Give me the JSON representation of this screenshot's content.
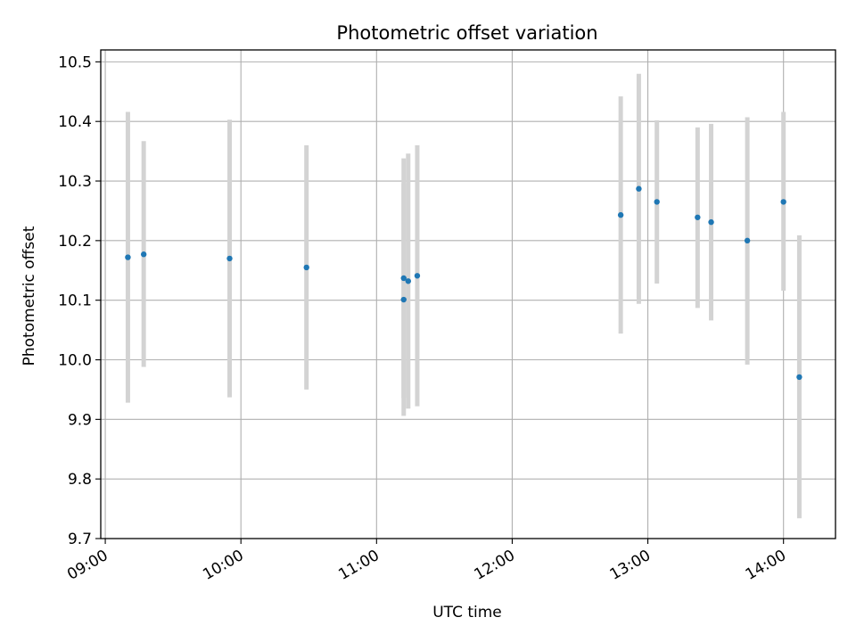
{
  "chart_data": {
    "type": "scatter",
    "title": "Photometric offset variation",
    "xlabel": "UTC time",
    "ylabel": "Photometric offset",
    "x_tick_labels": [
      "09:00",
      "10:00",
      "11:00",
      "12:00",
      "13:00",
      "14:00"
    ],
    "x_tick_values": [
      "09:00",
      "10:00",
      "11:00",
      "12:00",
      "13:00",
      "14:00"
    ],
    "xlim": [
      "08:58",
      "14:23"
    ],
    "ylim": [
      9.7,
      10.52
    ],
    "y_ticks": [
      9.7,
      9.8,
      9.9,
      10.0,
      10.1,
      10.2,
      10.3,
      10.4,
      10.5
    ],
    "y_tick_labels": [
      "9.7",
      "9.8",
      "9.9",
      "10.0",
      "10.1",
      "10.2",
      "10.3",
      "10.4",
      "10.5"
    ],
    "grid": true,
    "point_color": "#1f77b4",
    "errorbar_color": "#d3d3d3",
    "points": [
      {
        "x": "09:10",
        "y": 10.172,
        "ylow": 9.928,
        "yhigh": 10.416
      },
      {
        "x": "09:17",
        "y": 10.177,
        "ylow": 9.988,
        "yhigh": 10.367
      },
      {
        "x": "09:55",
        "y": 10.17,
        "ylow": 9.937,
        "yhigh": 10.403
      },
      {
        "x": "10:29",
        "y": 10.155,
        "ylow": 9.95,
        "yhigh": 10.36
      },
      {
        "x": "11:12",
        "y": 10.137,
        "ylow": 9.936,
        "yhigh": 10.338
      },
      {
        "x": "11:12",
        "y": 10.101,
        "ylow": 9.906,
        "yhigh": 10.296
      },
      {
        "x": "11:14",
        "y": 10.132,
        "ylow": 9.918,
        "yhigh": 10.346
      },
      {
        "x": "11:18",
        "y": 10.141,
        "ylow": 9.922,
        "yhigh": 10.36
      },
      {
        "x": "12:48",
        "y": 10.243,
        "ylow": 10.044,
        "yhigh": 10.442
      },
      {
        "x": "12:56",
        "y": 10.287,
        "ylow": 10.094,
        "yhigh": 10.48
      },
      {
        "x": "13:04",
        "y": 10.265,
        "ylow": 10.128,
        "yhigh": 10.402
      },
      {
        "x": "13:22",
        "y": 10.239,
        "ylow": 10.087,
        "yhigh": 10.39
      },
      {
        "x": "13:28",
        "y": 10.231,
        "ylow": 10.066,
        "yhigh": 10.396
      },
      {
        "x": "13:44",
        "y": 10.2,
        "ylow": 9.992,
        "yhigh": 10.407
      },
      {
        "x": "14:00",
        "y": 10.265,
        "ylow": 10.116,
        "yhigh": 10.416
      },
      {
        "x": "14:07",
        "y": 9.971,
        "ylow": 9.734,
        "yhigh": 10.209
      }
    ]
  }
}
